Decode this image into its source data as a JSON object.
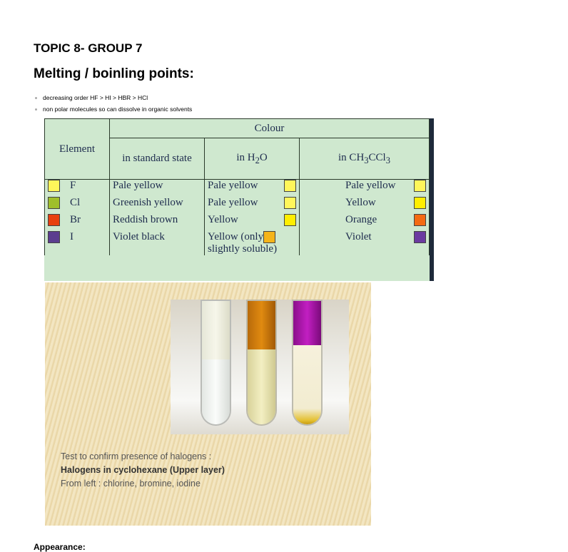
{
  "topic": "TOPIC 8- GROUP 7",
  "heading": "Melting / boinling points:",
  "bullets": [
    "decreasing order HF > HI > HBR > HCl",
    "non polar molecules so can dissolve in organic solvents"
  ],
  "table": {
    "col_element": "Element",
    "col_colour": "Colour",
    "sub_standard": "in standard state",
    "sub_water_prefix": "in H",
    "sub_water_sub": "2",
    "sub_water_suffix": "O",
    "sub_ch_prefix": "in CH",
    "sub_ch_sub1": "3",
    "sub_ch_mid": "CCl",
    "sub_ch_sub2": "3",
    "rows": [
      {
        "element": "F",
        "standard": "Pale yellow",
        "water": "Pale yellow",
        "organic": "Pale yellow",
        "sw_element": "#fff65a",
        "sw_water": "#fff65a",
        "sw_organic": "#fff65a"
      },
      {
        "element": "Cl",
        "standard": "Greenish yellow",
        "water": "Pale yellow",
        "organic": "Yellow",
        "sw_element": "#9fbf2a",
        "sw_water": "#fff65a",
        "sw_organic": "#ffee00"
      },
      {
        "element": "Br",
        "standard": "Reddish brown",
        "water": "Yellow",
        "organic": "Orange",
        "sw_element": "#e8400f",
        "sw_water": "#ffee00",
        "sw_organic": "#f46a12"
      },
      {
        "element": "I",
        "standard": "Violet black",
        "water": "Yellow (only",
        "water2": "slightly soluble)",
        "organic": "Violet",
        "sw_element": "#5b3d8f",
        "sw_water": "#f5b41a",
        "sw_organic": "#6b3aa0"
      }
    ]
  },
  "caption": {
    "line1": "Test to confirm presence of halogens :",
    "line2": "Halogens in cyclohexane (Upper layer)",
    "line3": "From left : chlorine, bromine, iodine"
  },
  "appearance": "Appearance:"
}
